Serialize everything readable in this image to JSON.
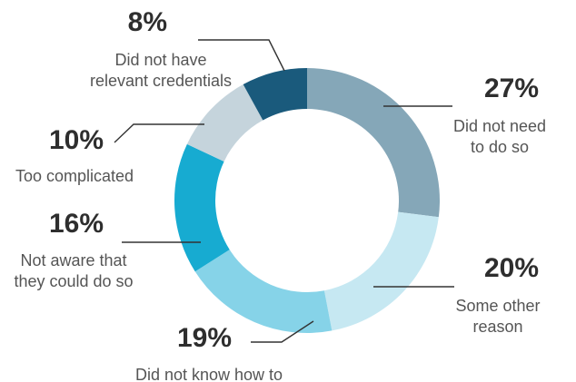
{
  "chart_data": {
    "type": "pie",
    "variant": "donut",
    "title": "",
    "slices": [
      {
        "label_lines": [
          "Did not need",
          "to do so"
        ],
        "value": 27,
        "value_label": "27%",
        "color": "#85a7b8"
      },
      {
        "label_lines": [
          "Some other",
          "reason"
        ],
        "value": 20,
        "value_label": "20%",
        "color": "#c6e8f2"
      },
      {
        "label_lines": [
          "Did not know how to"
        ],
        "value": 19,
        "value_label": "19%",
        "color": "#86d3e8"
      },
      {
        "label_lines": [
          "Not aware that",
          "they could do so"
        ],
        "value": 16,
        "value_label": "16%",
        "color": "#17abd1"
      },
      {
        "label_lines": [
          "Too complicated"
        ],
        "value": 10,
        "value_label": "10%",
        "color": "#c5d4dc"
      },
      {
        "label_lines": [
          "Did not have",
          "relevant credentials"
        ],
        "value": 8,
        "value_label": "8%",
        "color": "#1a5a7c"
      }
    ]
  }
}
